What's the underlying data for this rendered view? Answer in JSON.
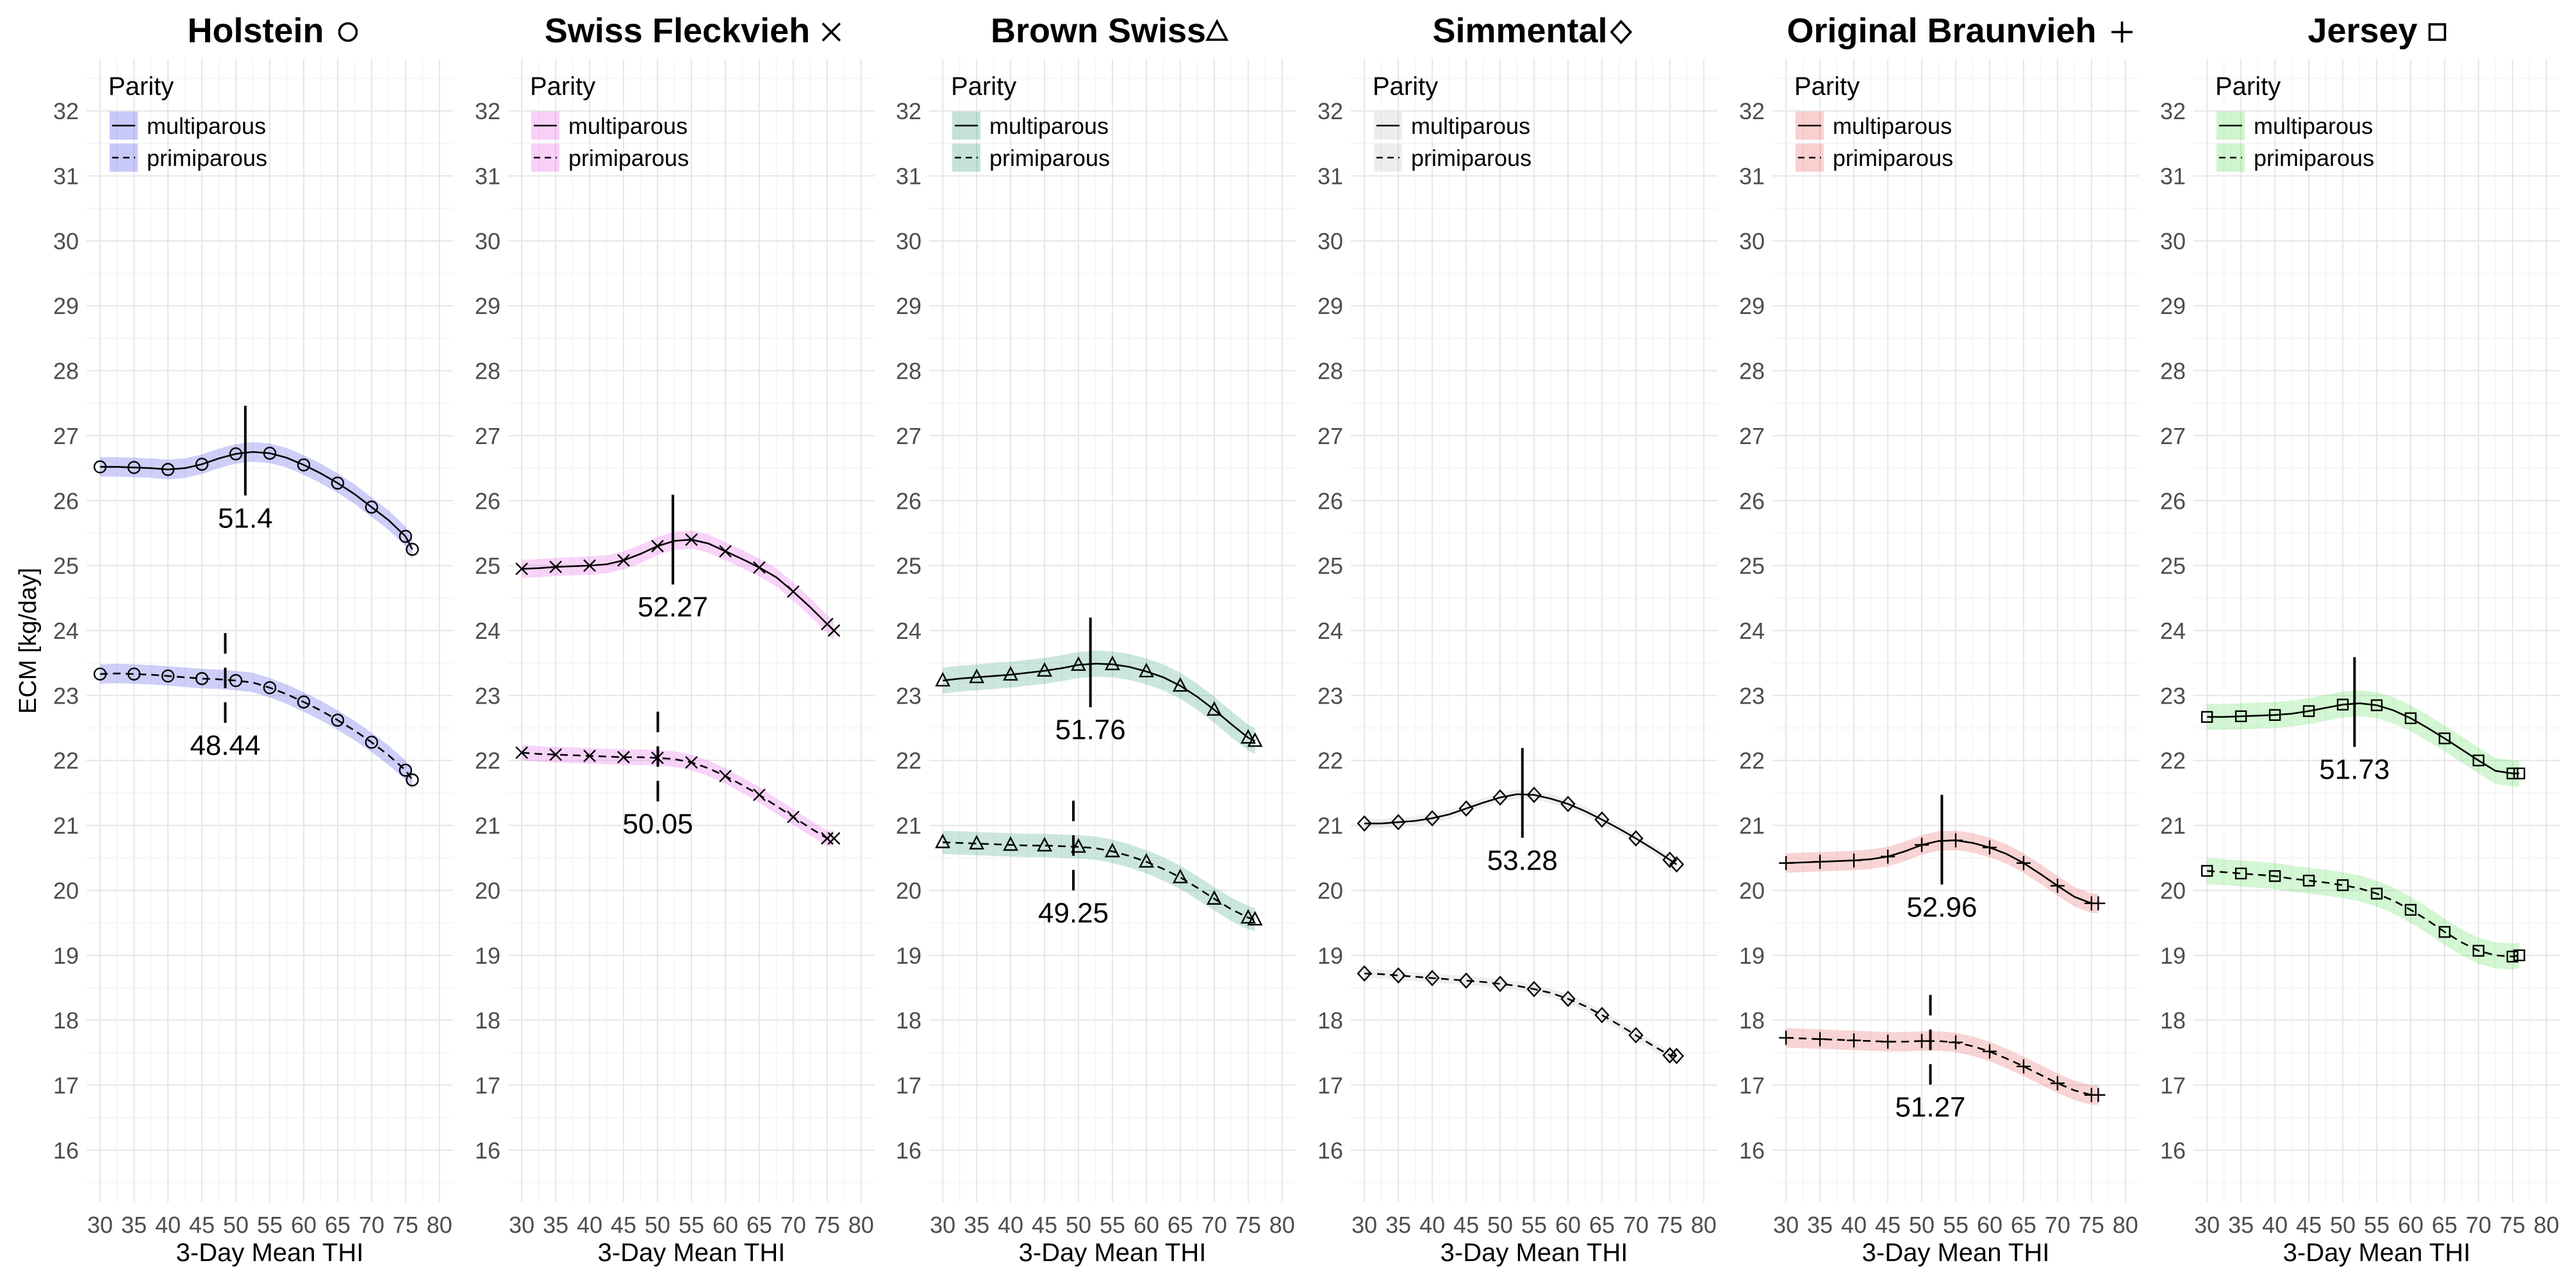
{
  "figure": {
    "ylabel": "ECM [kg/day]",
    "xlabel": "3-Day Mean THI",
    "legend_title": "Parity",
    "legend_entries": [
      "multiparous",
      "primiparous"
    ],
    "y_ticks": [
      16,
      17,
      18,
      19,
      20,
      21,
      22,
      23,
      24,
      25,
      26,
      27,
      28,
      29,
      30,
      31,
      32
    ],
    "x_ticks": [
      30,
      35,
      40,
      45,
      50,
      55,
      60,
      65,
      70,
      75,
      80
    ],
    "xlim": [
      28,
      82
    ],
    "ylim": [
      15.2,
      32.8
    ]
  },
  "chart_data": [
    {
      "type": "line",
      "title": "Holstein",
      "marker": "circle",
      "marker_icon": "circle-icon",
      "fill_color": "#3c3ce6",
      "x": [
        30,
        32.5,
        35,
        37.5,
        40,
        42.5,
        45,
        47.5,
        50,
        52.5,
        55,
        57.5,
        60,
        62.5,
        65,
        67.5,
        70,
        72.5,
        75,
        76
      ],
      "series": [
        {
          "name": "multiparous",
          "line": "solid",
          "values": [
            26.52,
            26.52,
            26.51,
            26.5,
            26.48,
            26.5,
            26.56,
            26.65,
            26.72,
            26.75,
            26.73,
            26.66,
            26.55,
            26.42,
            26.27,
            26.1,
            25.9,
            25.7,
            25.45,
            25.25
          ],
          "band": 0.15,
          "peak_x": 51.4,
          "peak_label": "51.4"
        },
        {
          "name": "primiparous",
          "line": "dashed",
          "values": [
            23.33,
            23.34,
            23.33,
            23.32,
            23.3,
            23.28,
            23.26,
            23.25,
            23.23,
            23.2,
            23.12,
            23.02,
            22.9,
            22.77,
            22.62,
            22.46,
            22.28,
            22.08,
            21.85,
            21.7
          ],
          "band": 0.15,
          "peak_x": 48.44,
          "peak_label": "48.44"
        }
      ]
    },
    {
      "type": "line",
      "title": "Swiss Fleckvieh",
      "marker": "x",
      "marker_icon": "cross-icon",
      "fill_color": "#e655e6",
      "x": [
        30,
        32.5,
        35,
        37.5,
        40,
        42.5,
        45,
        47.5,
        50,
        52.5,
        55,
        57.5,
        60,
        62.5,
        65,
        67.5,
        70,
        72.5,
        75,
        76
      ],
      "series": [
        {
          "name": "multiparous",
          "line": "solid",
          "values": [
            24.95,
            24.96,
            24.98,
            24.99,
            25.0,
            25.02,
            25.08,
            25.18,
            25.3,
            25.38,
            25.4,
            25.34,
            25.22,
            25.1,
            24.97,
            24.82,
            24.6,
            24.36,
            24.1,
            24.0
          ],
          "band": 0.14,
          "peak_x": 52.27,
          "peak_label": "52.27"
        },
        {
          "name": "primiparous",
          "line": "dashed",
          "values": [
            22.12,
            22.1,
            22.09,
            22.08,
            22.07,
            22.06,
            22.05,
            22.05,
            22.04,
            22.02,
            21.97,
            21.88,
            21.76,
            21.62,
            21.47,
            21.3,
            21.13,
            20.96,
            20.8,
            20.8
          ],
          "band": 0.12,
          "peak_x": 50.05,
          "peak_label": "50.05"
        }
      ]
    },
    {
      "type": "line",
      "title": "Brown Swiss",
      "marker": "triangle",
      "marker_icon": "triangle-icon",
      "fill_color": "#2e9c78",
      "x": [
        30,
        32.5,
        35,
        37.5,
        40,
        42.5,
        45,
        47.5,
        50,
        52.5,
        55,
        57.5,
        60,
        62.5,
        65,
        67.5,
        70,
        72.5,
        75,
        76
      ],
      "series": [
        {
          "name": "multiparous",
          "line": "solid",
          "values": [
            23.23,
            23.26,
            23.28,
            23.3,
            23.32,
            23.35,
            23.38,
            23.42,
            23.47,
            23.49,
            23.48,
            23.44,
            23.37,
            23.28,
            23.15,
            22.98,
            22.78,
            22.56,
            22.35,
            22.3
          ],
          "band": 0.2,
          "peak_x": 51.76,
          "peak_label": "51.76"
        },
        {
          "name": "primiparous",
          "line": "dashed",
          "values": [
            20.74,
            20.73,
            20.72,
            20.71,
            20.7,
            20.69,
            20.69,
            20.68,
            20.67,
            20.65,
            20.6,
            20.53,
            20.44,
            20.33,
            20.2,
            20.04,
            19.87,
            19.71,
            19.58,
            19.55
          ],
          "band": 0.18,
          "peak_x": 49.25,
          "peak_label": "49.25"
        }
      ]
    },
    {
      "type": "line",
      "title": "Simmental",
      "marker": "diamond",
      "marker_icon": "diamond-icon",
      "fill_color": "#bfbfbf",
      "x": [
        30,
        32.5,
        35,
        37.5,
        40,
        42.5,
        45,
        47.5,
        50,
        52.5,
        55,
        57.5,
        60,
        62.5,
        65,
        67.5,
        70,
        72.5,
        75,
        76
      ],
      "series": [
        {
          "name": "multiparous",
          "line": "solid",
          "values": [
            21.03,
            21.03,
            21.05,
            21.07,
            21.11,
            21.17,
            21.26,
            21.35,
            21.43,
            21.48,
            21.47,
            21.41,
            21.33,
            21.22,
            21.09,
            20.95,
            20.8,
            20.64,
            20.47,
            20.4
          ],
          "band": 0.07,
          "peak_x": 53.28,
          "peak_label": "53.28"
        },
        {
          "name": "primiparous",
          "line": "dashed",
          "values": [
            18.72,
            18.71,
            18.69,
            18.67,
            18.65,
            18.63,
            18.61,
            18.59,
            18.56,
            18.53,
            18.48,
            18.42,
            18.33,
            18.22,
            18.08,
            17.93,
            17.77,
            17.61,
            17.46,
            17.45
          ],
          "band": 0.07,
          "peak_x": null,
          "peak_label": ""
        }
      ]
    },
    {
      "type": "line",
      "title": "Original Braunvieh",
      "marker": "plus",
      "marker_icon": "plus-icon",
      "fill_color": "#e85555",
      "x": [
        30,
        32.5,
        35,
        37.5,
        40,
        42.5,
        45,
        47.5,
        50,
        52.5,
        55,
        57.5,
        60,
        62.5,
        65,
        67.5,
        70,
        72.5,
        75,
        76
      ],
      "series": [
        {
          "name": "multiparous",
          "line": "solid",
          "values": [
            20.42,
            20.43,
            20.44,
            20.45,
            20.46,
            20.48,
            20.52,
            20.6,
            20.7,
            20.76,
            20.77,
            20.73,
            20.66,
            20.56,
            20.42,
            20.25,
            20.07,
            19.9,
            19.8,
            19.8
          ],
          "band": 0.15,
          "peak_x": 52.96,
          "peak_label": "52.96"
        },
        {
          "name": "primiparous",
          "line": "dashed",
          "values": [
            17.73,
            17.72,
            17.71,
            17.7,
            17.69,
            17.68,
            17.67,
            17.67,
            17.68,
            17.68,
            17.66,
            17.6,
            17.52,
            17.41,
            17.29,
            17.16,
            17.03,
            16.92,
            16.85,
            16.85
          ],
          "band": 0.15,
          "peak_x": 51.27,
          "peak_label": "51.27"
        }
      ]
    },
    {
      "type": "line",
      "title": "Jersey",
      "marker": "square",
      "marker_icon": "square-icon",
      "fill_color": "#4fdc4f",
      "x": [
        30,
        32.5,
        35,
        37.5,
        40,
        42.5,
        45,
        47.5,
        50,
        52.5,
        55,
        57.5,
        60,
        62.5,
        65,
        67.5,
        70,
        72.5,
        75,
        76
      ],
      "series": [
        {
          "name": "multiparous",
          "line": "solid",
          "values": [
            22.67,
            22.67,
            22.68,
            22.69,
            22.7,
            22.72,
            22.76,
            22.81,
            22.86,
            22.88,
            22.85,
            22.77,
            22.65,
            22.5,
            22.34,
            22.17,
            22.0,
            21.84,
            21.8,
            21.8
          ],
          "band": 0.2,
          "peak_x": 51.73,
          "peak_label": "51.73"
        },
        {
          "name": "primiparous",
          "line": "dashed",
          "values": [
            20.3,
            20.28,
            20.26,
            20.24,
            20.22,
            20.18,
            20.15,
            20.12,
            20.08,
            20.03,
            19.95,
            19.84,
            19.7,
            19.54,
            19.36,
            19.2,
            19.07,
            19.0,
            18.98,
            19.0
          ],
          "band": 0.2,
          "peak_x": null,
          "peak_label": ""
        }
      ]
    }
  ]
}
